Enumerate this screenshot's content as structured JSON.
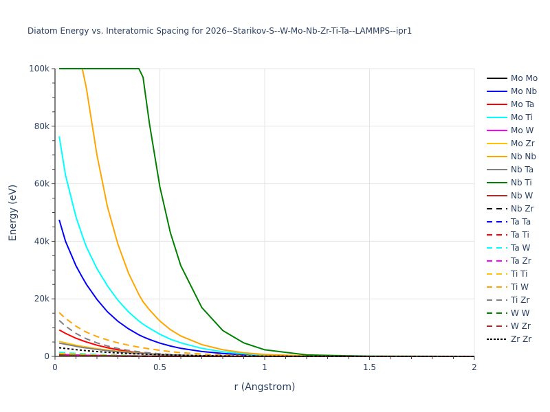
{
  "chart_data": {
    "type": "line",
    "title": "Diatom Energy vs. Interatomic Spacing for 2026--Starikov-S--W-Mo-Nb-Zr-Ti-Ta--LAMMPS--ipr1",
    "xlabel": "r (Angstrom)",
    "ylabel": "Energy (eV)",
    "xlim": [
      0,
      2
    ],
    "ylim": [
      0,
      100000
    ],
    "xticks": [
      0,
      0.5,
      1,
      1.5,
      2
    ],
    "xtick_labels": [
      "0",
      "0.5",
      "1",
      "1.5",
      "2"
    ],
    "yticks": [
      0,
      20000,
      40000,
      60000,
      80000,
      100000
    ],
    "ytick_labels": [
      "0",
      "20k",
      "40k",
      "60k",
      "80k",
      "100k"
    ],
    "grid": true,
    "legend_position": "right",
    "x": [
      0.02,
      0.05,
      0.1,
      0.13,
      0.15,
      0.2,
      0.25,
      0.3,
      0.35,
      0.4,
      0.42,
      0.45,
      0.5,
      0.55,
      0.6,
      0.7,
      0.8,
      0.9,
      1.0,
      1.2,
      1.5,
      2.0
    ],
    "series": [
      {
        "name": "Mo Mo",
        "color": "#000000",
        "dash": "solid",
        "values": [
          600,
          520,
          420,
          370,
          340,
          280,
          230,
          190,
          155,
          125,
          115,
          100,
          80,
          65,
          50,
          30,
          18,
          10,
          5,
          1,
          0,
          0
        ]
      },
      {
        "name": "Mo Nb",
        "color": "#0000ff",
        "dash": "solid",
        "values": [
          47500,
          40000,
          31500,
          27500,
          25000,
          19800,
          15500,
          12200,
          9600,
          7500,
          6800,
          5900,
          4600,
          3600,
          2800,
          1700,
          1000,
          550,
          300,
          80,
          10,
          0
        ]
      },
      {
        "name": "Mo Ta",
        "color": "#ff0000",
        "dash": "solid",
        "values": [
          9200,
          8000,
          6300,
          5500,
          5000,
          3900,
          3000,
          2300,
          1750,
          1300,
          1150,
          950,
          700,
          500,
          360,
          180,
          90,
          40,
          15,
          3,
          0,
          0
        ]
      },
      {
        "name": "Mo Ti",
        "color": "#00ffff",
        "dash": "solid",
        "values": [
          76500,
          63000,
          48500,
          42000,
          38000,
          30500,
          24500,
          19500,
          15500,
          12300,
          11200,
          9800,
          7700,
          6000,
          4700,
          2800,
          1600,
          900,
          480,
          120,
          15,
          0
        ]
      },
      {
        "name": "Mo W",
        "color": "#ff00ff",
        "dash": "solid",
        "values": [
          700,
          600,
          480,
          420,
          380,
          310,
          250,
          200,
          160,
          125,
          115,
          100,
          80,
          60,
          45,
          25,
          14,
          7,
          3,
          1,
          0,
          0
        ]
      },
      {
        "name": "Mo Zr",
        "color": "#ffc107",
        "dash": "solid",
        "values": [
          5200,
          4700,
          3900,
          3500,
          3250,
          2700,
          2200,
          1800,
          1450,
          1150,
          1050,
          900,
          700,
          540,
          410,
          230,
          120,
          60,
          25,
          5,
          0,
          0
        ]
      },
      {
        "name": "Nb Nb",
        "color": "#ffa500",
        "dash": "solid",
        "values": [
          100000,
          100000,
          100000,
          100000,
          93000,
          70000,
          52000,
          39000,
          29000,
          21500,
          19000,
          16200,
          12300,
          9300,
          7100,
          4100,
          2300,
          1250,
          650,
          150,
          15,
          0
        ]
      },
      {
        "name": "Nb Ta",
        "color": "#808080",
        "dash": "solid",
        "values": [
          4600,
          4200,
          3500,
          3100,
          2900,
          2400,
          1950,
          1600,
          1300,
          1050,
          950,
          820,
          640,
          490,
          370,
          200,
          100,
          50,
          20,
          4,
          0,
          0
        ]
      },
      {
        "name": "Nb Ti",
        "color": "#008000",
        "dash": "solid",
        "values": [
          100000,
          100000,
          100000,
          100000,
          100000,
          100000,
          100000,
          100000,
          100000,
          100000,
          97000,
          81000,
          59000,
          43000,
          31500,
          17000,
          9000,
          4700,
          2300,
          500,
          50,
          0
        ]
      },
      {
        "name": "Nb W",
        "color": "#a52a2a",
        "dash": "solid",
        "values": [
          300,
          260,
          210,
          185,
          170,
          140,
          115,
          95,
          75,
          60,
          55,
          48,
          38,
          30,
          23,
          13,
          7,
          3,
          1,
          0,
          0,
          0
        ]
      },
      {
        "name": "Nb Zr",
        "color": "#000000",
        "dash": "dash",
        "values": [
          400,
          350,
          290,
          255,
          235,
          195,
          160,
          130,
          105,
          85,
          78,
          67,
          52,
          40,
          30,
          17,
          9,
          4,
          2,
          0,
          0,
          0
        ]
      },
      {
        "name": "Ta Ta",
        "color": "#0000ff",
        "dash": "dash",
        "values": [
          800,
          700,
          560,
          490,
          450,
          365,
          295,
          240,
          190,
          150,
          138,
          120,
          95,
          73,
          56,
          32,
          18,
          9,
          4,
          1,
          0,
          0
        ]
      },
      {
        "name": "Ta Ti",
        "color": "#ff0000",
        "dash": "dash",
        "values": [
          1100,
          980,
          800,
          700,
          640,
          520,
          420,
          340,
          270,
          215,
          195,
          170,
          130,
          100,
          77,
          43,
          23,
          11,
          5,
          1,
          0,
          0
        ]
      },
      {
        "name": "Ta W",
        "color": "#00ffff",
        "dash": "dash",
        "values": [
          1400,
          1250,
          1020,
          900,
          830,
          670,
          540,
          440,
          350,
          280,
          255,
          220,
          170,
          130,
          100,
          56,
          30,
          15,
          7,
          1,
          0,
          0
        ]
      },
      {
        "name": "Ta Zr",
        "color": "#ff00ff",
        "dash": "dash",
        "values": [
          900,
          800,
          650,
          570,
          520,
          420,
          340,
          275,
          220,
          175,
          160,
          138,
          107,
          82,
          63,
          35,
          19,
          9,
          4,
          1,
          0,
          0
        ]
      },
      {
        "name": "Ti Ti",
        "color": "#ffc107",
        "dash": "dash",
        "values": [
          1000,
          890,
          730,
          640,
          590,
          475,
          385,
          310,
          248,
          198,
          180,
          156,
          120,
          92,
          70,
          39,
          21,
          10,
          5,
          1,
          0,
          0
        ]
      },
      {
        "name": "Ti W",
        "color": "#ffa500",
        "dash": "dash",
        "values": [
          15200,
          13200,
          10500,
          9200,
          8400,
          6900,
          5700,
          4700,
          3900,
          3200,
          2950,
          2600,
          2100,
          1650,
          1300,
          800,
          470,
          260,
          140,
          35,
          3,
          0
        ]
      },
      {
        "name": "Ti Zr",
        "color": "#808080",
        "dash": "dash",
        "values": [
          12500,
          10500,
          8000,
          6800,
          6100,
          4700,
          3600,
          2750,
          2100,
          1600,
          1430,
          1220,
          900,
          660,
          480,
          250,
          125,
          60,
          28,
          5,
          0,
          0
        ]
      },
      {
        "name": "W W",
        "color": "#008000",
        "dash": "dash",
        "values": [
          500,
          440,
          360,
          315,
          290,
          235,
          190,
          155,
          123,
          98,
          90,
          78,
          60,
          46,
          35,
          20,
          11,
          5,
          2,
          0,
          0,
          0
        ]
      },
      {
        "name": "W Zr",
        "color": "#a52a2a",
        "dash": "dash",
        "values": [
          350,
          305,
          250,
          220,
          200,
          163,
          132,
          107,
          86,
          68,
          62,
          54,
          42,
          32,
          24,
          14,
          7,
          3,
          1,
          0,
          0,
          0
        ]
      },
      {
        "name": "Zr Zr",
        "color": "#000000",
        "dash": "dot",
        "values": [
          3000,
          2750,
          2350,
          2120,
          1980,
          1680,
          1420,
          1200,
          1010,
          850,
          790,
          710,
          590,
          490,
          400,
          265,
          170,
          105,
          62,
          20,
          3,
          0
        ]
      }
    ]
  }
}
